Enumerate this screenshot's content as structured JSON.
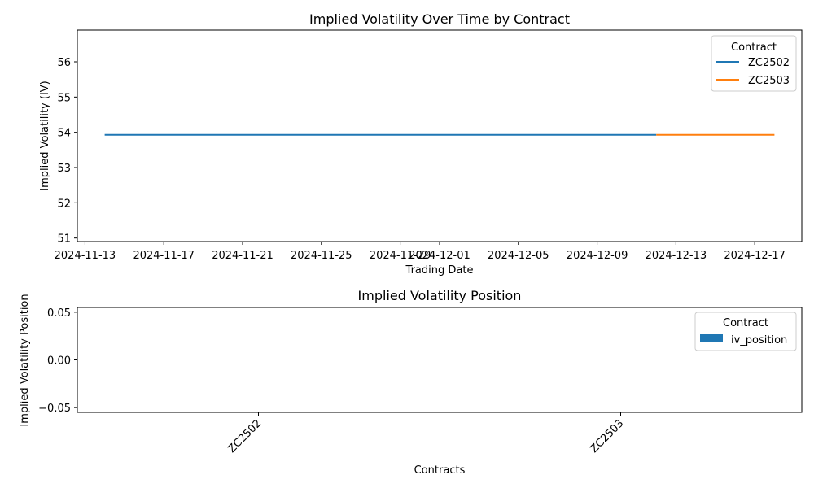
{
  "chart_data": [
    {
      "type": "line",
      "title": "Implied Volatility Over Time by Contract",
      "xlabel": "Trading Date",
      "ylabel": "Implied Volatility (IV)",
      "ylim": [
        50.9,
        56.9
      ],
      "yticks": [
        51,
        52,
        53,
        54,
        55,
        56
      ],
      "xlim": [
        "2024-11-12",
        "2024-12-19"
      ],
      "xticks": [
        "2024-11-13",
        "2024-11-17",
        "2024-11-21",
        "2024-11-25",
        "2024-11-29",
        "2024-12-01",
        "2024-12-05",
        "2024-12-09",
        "2024-12-13",
        "2024-12-17"
      ],
      "legend": {
        "title": "Contract",
        "placement": "top-right"
      },
      "grid": false,
      "series": [
        {
          "name": "ZC2502",
          "color": "#1f77b4",
          "x": [
            "2024-11-14",
            "2024-12-12"
          ],
          "y": [
            53.93,
            53.93
          ]
        },
        {
          "name": "ZC2503",
          "color": "#ff7f0e",
          "x": [
            "2024-12-12",
            "2024-12-18"
          ],
          "y": [
            53.93,
            53.93
          ]
        }
      ]
    },
    {
      "type": "bar",
      "title": "Implied Volatility Position",
      "xlabel": "Contracts",
      "ylabel": "Implied Volatility Position",
      "categories": [
        "ZC2502",
        "ZC2503"
      ],
      "ylim": [
        -0.055,
        0.055
      ],
      "yticks": [
        -0.05,
        0.0,
        0.05
      ],
      "ytick_labels": [
        "−0.05",
        "0.00",
        "0.05"
      ],
      "legend": {
        "title": "Contract",
        "placement": "top-right"
      },
      "grid": false,
      "series": [
        {
          "name": "iv_position",
          "color": "#1f77b4",
          "values": [
            0,
            0
          ]
        }
      ]
    }
  ]
}
